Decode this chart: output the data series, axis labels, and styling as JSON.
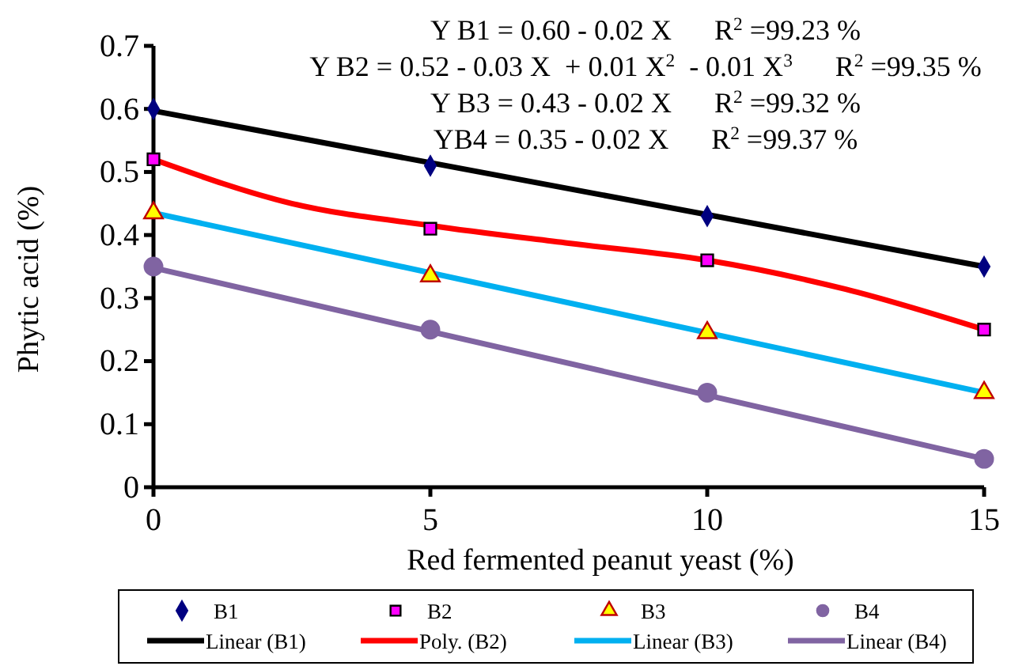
{
  "chart_data": {
    "type": "scatter",
    "xlabel": "Red fermented peanut yeast (%)",
    "ylabel": "Phytic acid (%)",
    "annotations": [
      "Y B1 = 0.60 - 0.02 X      R$^{2}$ =99.23 %",
      "Y B2 = 0.52 - 0.03 X  + 0.01 X$^{2}$  - 0.01 X$^{3}$      R$^{2}$ =99.35 %",
      "Y B3 = 0.43 - 0.02 X      R$^{2}$ =99.32 %",
      "YB4 = 0.35 - 0.02 X      R$^{2}$ =99.37 %"
    ],
    "xlim": [
      0,
      15
    ],
    "xticks": [
      0,
      5,
      10,
      15
    ],
    "ylim": [
      0,
      0.7
    ],
    "yticks": [
      0,
      0.1,
      0.2,
      0.3,
      0.4,
      0.5,
      0.6,
      0.7
    ],
    "grid": false,
    "legend": "bottom",
    "series": [
      {
        "name": "B1",
        "type": "scatter",
        "marker": "diamond",
        "color": "#000080",
        "x": [
          0,
          5,
          10,
          15
        ],
        "values": [
          0.6,
          0.51,
          0.43,
          0.35
        ]
      },
      {
        "name": "B2",
        "type": "scatter",
        "marker": "square",
        "color": "#ff00ff",
        "x": [
          0,
          5,
          10,
          15
        ],
        "values": [
          0.52,
          0.41,
          0.36,
          0.25
        ]
      },
      {
        "name": "B3",
        "type": "scatter",
        "marker": "triangle",
        "color": "#ffff00",
        "x": [
          0,
          5,
          10,
          15
        ],
        "values": [
          0.435,
          0.335,
          0.245,
          0.15
        ]
      },
      {
        "name": "B4",
        "type": "scatter",
        "marker": "circle",
        "color": "#8064a2",
        "x": [
          0,
          5,
          10,
          15
        ],
        "values": [
          0.35,
          0.25,
          0.15,
          0.045
        ]
      },
      {
        "name": "Linear (B1)",
        "type": "line",
        "marker": "none",
        "color": "#000000",
        "x": [
          0,
          15
        ],
        "values": [
          0.597,
          0.35
        ]
      },
      {
        "name": "Poly. (B2)",
        "type": "line",
        "marker": "none",
        "color": "#ff0000",
        "x": [
          0,
          2.5,
          5,
          7.5,
          10,
          12.5,
          15
        ],
        "values": [
          0.52,
          0.45,
          0.415,
          0.387,
          0.36,
          0.314,
          0.25
        ]
      },
      {
        "name": "Linear (B3)",
        "type": "line",
        "marker": "none",
        "color": "#00b0f0",
        "x": [
          0,
          15
        ],
        "values": [
          0.435,
          0.15
        ]
      },
      {
        "name": "Linear (B4)",
        "type": "line",
        "marker": "none",
        "color": "#8064a2",
        "x": [
          0,
          15
        ],
        "values": [
          0.348,
          0.045
        ]
      }
    ]
  }
}
